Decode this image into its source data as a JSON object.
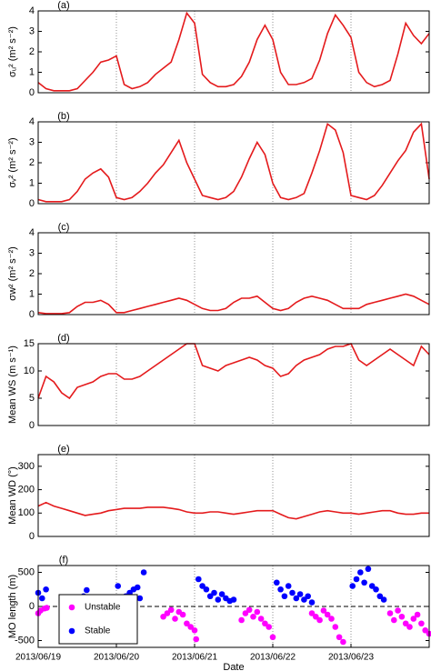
{
  "chart_data": [
    {
      "type": "line",
      "panel_label": "(a)",
      "y_label": "σᵤ² (m² s⁻²)",
      "color": "#e41a1c",
      "xlim": [
        0,
        5
      ],
      "vlines": [
        1,
        2,
        3,
        4
      ],
      "ylim": [
        0,
        4
      ],
      "yticks": [
        0,
        1,
        2,
        3,
        4
      ],
      "x": [
        0,
        0.1,
        0.2,
        0.3,
        0.4,
        0.5,
        0.6,
        0.7,
        0.8,
        0.9,
        1,
        1.1,
        1.2,
        1.3,
        1.4,
        1.5,
        1.6,
        1.7,
        1.8,
        1.9,
        2,
        2.1,
        2.2,
        2.3,
        2.4,
        2.5,
        2.6,
        2.7,
        2.8,
        2.9,
        3,
        3.1,
        3.2,
        3.3,
        3.4,
        3.5,
        3.6,
        3.7,
        3.8,
        3.9,
        4,
        4.1,
        4.2,
        4.3,
        4.4,
        4.5,
        4.6,
        4.7,
        4.8,
        4.9,
        5
      ],
      "values": [
        0.5,
        0.2,
        0.1,
        0.1,
        0.1,
        0.2,
        0.6,
        1.0,
        1.5,
        1.6,
        1.8,
        0.4,
        0.2,
        0.3,
        0.5,
        0.9,
        1.2,
        1.5,
        2.6,
        3.9,
        3.4,
        0.9,
        0.5,
        0.3,
        0.3,
        0.4,
        0.8,
        1.5,
        2.6,
        3.3,
        2.6,
        1.0,
        0.4,
        0.4,
        0.5,
        0.7,
        1.6,
        2.9,
        3.8,
        3.3,
        2.7,
        1.0,
        0.5,
        0.3,
        0.4,
        0.6,
        1.9,
        3.4,
        2.8,
        2.4,
        2.9
      ]
    },
    {
      "type": "line",
      "panel_label": "(b)",
      "y_label": "σᵥ² (m² s⁻²)",
      "color": "#e41a1c",
      "xlim": [
        0,
        5
      ],
      "vlines": [
        1,
        2,
        3,
        4
      ],
      "ylim": [
        0,
        4
      ],
      "yticks": [
        0,
        1,
        2,
        3,
        4
      ],
      "x": [
        0,
        0.1,
        0.2,
        0.3,
        0.4,
        0.5,
        0.6,
        0.7,
        0.8,
        0.9,
        1,
        1.1,
        1.2,
        1.3,
        1.4,
        1.5,
        1.6,
        1.7,
        1.8,
        1.9,
        2,
        2.1,
        2.2,
        2.3,
        2.4,
        2.5,
        2.6,
        2.7,
        2.8,
        2.9,
        3,
        3.1,
        3.2,
        3.3,
        3.4,
        3.5,
        3.6,
        3.7,
        3.8,
        3.9,
        4,
        4.1,
        4.2,
        4.3,
        4.4,
        4.5,
        4.6,
        4.7,
        4.8,
        4.9,
        5
      ],
      "values": [
        0.2,
        0.1,
        0.1,
        0.1,
        0.2,
        0.6,
        1.2,
        1.5,
        1.7,
        1.3,
        0.3,
        0.2,
        0.3,
        0.6,
        1.0,
        1.5,
        1.9,
        2.5,
        3.1,
        2.0,
        1.2,
        0.4,
        0.3,
        0.2,
        0.3,
        0.6,
        1.3,
        2.2,
        3.0,
        2.4,
        1.0,
        0.3,
        0.2,
        0.3,
        0.5,
        1.5,
        2.6,
        3.9,
        3.6,
        2.5,
        0.4,
        0.3,
        0.2,
        0.4,
        0.9,
        1.5,
        2.1,
        2.6,
        3.5,
        3.9,
        1.2
      ]
    },
    {
      "type": "line",
      "panel_label": "(c)",
      "y_label": "σw² (m² s⁻²)",
      "color": "#e41a1c",
      "xlim": [
        0,
        5
      ],
      "vlines": [
        1,
        2,
        3,
        4
      ],
      "ylim": [
        0,
        4
      ],
      "yticks": [
        0,
        1,
        2,
        3,
        4
      ],
      "x": [
        0,
        0.1,
        0.2,
        0.3,
        0.4,
        0.5,
        0.6,
        0.7,
        0.8,
        0.9,
        1,
        1.1,
        1.2,
        1.3,
        1.4,
        1.5,
        1.6,
        1.7,
        1.8,
        1.9,
        2,
        2.1,
        2.2,
        2.3,
        2.4,
        2.5,
        2.6,
        2.7,
        2.8,
        2.9,
        3,
        3.1,
        3.2,
        3.3,
        3.4,
        3.5,
        3.6,
        3.7,
        3.8,
        3.9,
        4,
        4.1,
        4.2,
        4.3,
        4.4,
        4.5,
        4.6,
        4.7,
        4.8,
        4.9,
        5
      ],
      "values": [
        0.1,
        0.05,
        0.05,
        0.05,
        0.1,
        0.4,
        0.6,
        0.6,
        0.7,
        0.5,
        0.1,
        0.1,
        0.2,
        0.3,
        0.4,
        0.5,
        0.6,
        0.7,
        0.8,
        0.7,
        0.5,
        0.3,
        0.2,
        0.2,
        0.3,
        0.6,
        0.8,
        0.8,
        0.9,
        0.6,
        0.3,
        0.2,
        0.3,
        0.6,
        0.8,
        0.9,
        0.8,
        0.7,
        0.5,
        0.3,
        0.3,
        0.3,
        0.5,
        0.6,
        0.7,
        0.8,
        0.9,
        1.0,
        0.9,
        0.7,
        0.5
      ]
    },
    {
      "type": "line",
      "panel_label": "(d)",
      "y_label": "Mean WS (m s⁻¹)",
      "color": "#e41a1c",
      "xlim": [
        0,
        5
      ],
      "vlines": [
        1,
        2,
        3,
        4
      ],
      "ylim": [
        0,
        15
      ],
      "yticks": [
        0,
        5,
        10,
        15
      ],
      "x": [
        0,
        0.1,
        0.2,
        0.3,
        0.4,
        0.5,
        0.6,
        0.7,
        0.8,
        0.9,
        1,
        1.1,
        1.2,
        1.3,
        1.4,
        1.5,
        1.6,
        1.7,
        1.8,
        1.9,
        2,
        2.1,
        2.2,
        2.3,
        2.4,
        2.5,
        2.6,
        2.7,
        2.8,
        2.9,
        3,
        3.1,
        3.2,
        3.3,
        3.4,
        3.5,
        3.6,
        3.7,
        3.8,
        3.9,
        4,
        4.1,
        4.2,
        4.3,
        4.4,
        4.5,
        4.6,
        4.7,
        4.8,
        4.9,
        5
      ],
      "values": [
        5,
        9,
        8,
        6,
        5,
        7,
        7.5,
        8,
        9,
        9.5,
        9.5,
        8.5,
        8.5,
        9,
        10,
        11,
        12,
        13,
        14,
        15,
        15,
        11,
        10.5,
        10,
        11,
        11.5,
        12,
        12.5,
        12,
        11,
        10.5,
        9,
        9.5,
        11,
        12,
        12.5,
        13,
        14,
        14.5,
        14.5,
        15,
        12,
        11,
        12,
        13,
        14,
        13,
        12,
        11,
        14.5,
        13
      ]
    },
    {
      "type": "line",
      "panel_label": "(e)",
      "y_label": "Mean WD (°)",
      "color": "#e41a1c",
      "xlim": [
        0,
        5
      ],
      "vlines": [
        1,
        2,
        3,
        4
      ],
      "ylim": [
        0,
        350
      ],
      "yticks": [
        0,
        100,
        200,
        300
      ],
      "x": [
        0,
        0.1,
        0.2,
        0.3,
        0.4,
        0.5,
        0.6,
        0.7,
        0.8,
        0.9,
        1,
        1.1,
        1.2,
        1.3,
        1.4,
        1.5,
        1.6,
        1.7,
        1.8,
        1.9,
        2,
        2.1,
        2.2,
        2.3,
        2.4,
        2.5,
        2.6,
        2.7,
        2.8,
        2.9,
        3,
        3.1,
        3.2,
        3.3,
        3.4,
        3.5,
        3.6,
        3.7,
        3.8,
        3.9,
        4,
        4.1,
        4.2,
        4.3,
        4.4,
        4.5,
        4.6,
        4.7,
        4.8,
        4.9,
        5
      ],
      "values": [
        130,
        145,
        130,
        120,
        110,
        100,
        90,
        95,
        100,
        110,
        115,
        120,
        120,
        120,
        125,
        125,
        125,
        120,
        115,
        105,
        100,
        100,
        105,
        105,
        100,
        95,
        100,
        105,
        110,
        110,
        110,
        95,
        80,
        75,
        85,
        95,
        105,
        110,
        105,
        100,
        100,
        95,
        100,
        105,
        110,
        110,
        100,
        95,
        95,
        100,
        100
      ]
    },
    {
      "type": "scatter",
      "panel_label": "(f)",
      "y_label": "MO length (m)",
      "x_label": "Date",
      "xlim": [
        0,
        5
      ],
      "vlines": [
        1,
        2,
        3,
        4
      ],
      "hline": 0,
      "ylim": [
        -600,
        600
      ],
      "yticks": [
        -500,
        0,
        500
      ],
      "xticks": [
        {
          "value": 0,
          "label": "2013/06/19"
        },
        {
          "value": 1,
          "label": "2013/06/20"
        },
        {
          "value": 2,
          "label": "2013/06/21"
        },
        {
          "value": 3,
          "label": "2013/06/22"
        },
        {
          "value": 4,
          "label": "2013/06/23"
        }
      ],
      "legend": "lower left",
      "series": [
        {
          "name": "Unstable",
          "color": "#ff00ff",
          "x": [
            0.0,
            0.03,
            0.08,
            0.11,
            0.7,
            0.75,
            1.6,
            1.65,
            1.7,
            1.75,
            1.8,
            1.85,
            1.9,
            1.95,
            2.0,
            2.02,
            2.6,
            2.65,
            2.7,
            2.75,
            2.8,
            2.85,
            2.9,
            2.95,
            3.0,
            3.5,
            3.55,
            3.6,
            3.65,
            3.7,
            3.75,
            3.8,
            3.85,
            3.9,
            4.5,
            4.55,
            4.6,
            4.65,
            4.7,
            4.75,
            4.8,
            4.85,
            4.9,
            4.95,
            5.0
          ],
          "values": [
            -100,
            -60,
            -30,
            -20,
            0,
            0,
            -150,
            -100,
            -50,
            -180,
            -80,
            -120,
            -250,
            -300,
            -350,
            -480,
            -200,
            -100,
            -50,
            -150,
            -80,
            -180,
            -250,
            -300,
            -450,
            -100,
            -150,
            -200,
            -60,
            -120,
            -180,
            -300,
            -450,
            -520,
            -100,
            -200,
            -60,
            -150,
            -250,
            -300,
            -180,
            -120,
            -250,
            -350,
            -400
          ]
        },
        {
          "name": "Stable",
          "color": "#0000ff",
          "x": [
            0.0,
            0.05,
            0.1,
            0.3,
            0.35,
            0.4,
            0.45,
            0.5,
            0.55,
            0.58,
            0.62,
            1.02,
            1.07,
            1.12,
            1.17,
            1.22,
            1.27,
            1.3,
            1.35,
            2.05,
            2.1,
            2.15,
            2.2,
            2.25,
            2.3,
            2.35,
            2.4,
            2.45,
            2.5,
            3.05,
            3.1,
            3.15,
            3.2,
            3.25,
            3.3,
            3.35,
            3.4,
            3.45,
            3.5,
            4.02,
            4.07,
            4.12,
            4.17,
            4.22,
            4.27,
            4.32,
            4.37,
            4.42
          ],
          "values": [
            200,
            120,
            250,
            30,
            10,
            40,
            50,
            20,
            30,
            150,
            240,
            300,
            100,
            150,
            200,
            250,
            280,
            120,
            500,
            400,
            300,
            250,
            150,
            200,
            100,
            180,
            120,
            80,
            100,
            350,
            250,
            150,
            300,
            200,
            120,
            180,
            100,
            150,
            60,
            300,
            400,
            500,
            350,
            550,
            300,
            250,
            150,
            100
          ]
        }
      ]
    }
  ]
}
